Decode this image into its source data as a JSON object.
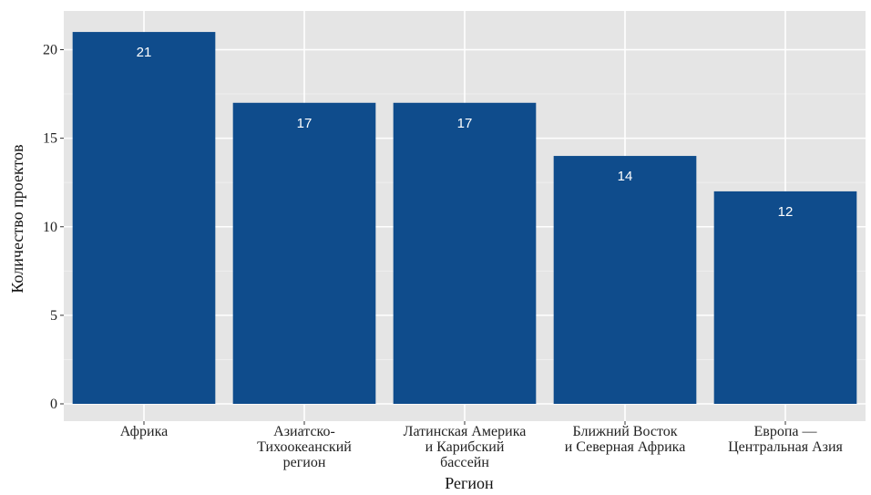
{
  "chart_data": {
    "type": "bar",
    "xlabel": "Регион",
    "ylabel": "Количество проектов",
    "ylim": [
      0,
      22
    ],
    "yticks": [
      0,
      5,
      10,
      15,
      20
    ],
    "grid": true,
    "categories": [
      "Африка",
      "Азиатско-\nТихоокеанский\nрегион",
      "Латинская Америка\nи Карибский\nбассейн",
      "Ближний Восток\nи Северная Африка",
      "Европа —\nЦентральная Азия"
    ],
    "values": [
      21,
      17,
      17,
      14,
      12
    ],
    "data_labels": [
      "21",
      "17",
      "17",
      "14",
      "12"
    ]
  },
  "colors": {
    "bar": "#0f4c8c",
    "panel": "#e5e5e5",
    "grid_major": "#ffffff",
    "grid_minor": "#f0f0f0",
    "data_label": "#ffffff"
  }
}
